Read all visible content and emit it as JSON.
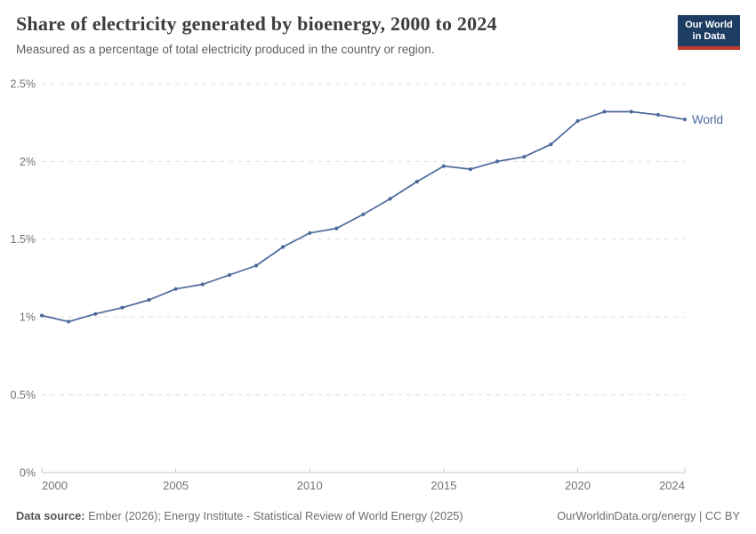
{
  "header": {
    "title": "Share of electricity generated by bioenergy, 2000 to 2024",
    "subtitle": "Measured as a percentage of total electricity produced in the country or region."
  },
  "logo": {
    "line1": "Our World",
    "line2": "in Data"
  },
  "colors": {
    "line": "#4C6A9C",
    "logo_bg": "#1d3d63",
    "logo_bar": "#c0392b",
    "grid": "#e0e0e0",
    "axis": "#c8c8c8",
    "tick_label": "#737373"
  },
  "chart_data": {
    "type": "line",
    "title": "Share of electricity generated by bioenergy, 2000 to 2024",
    "x": [
      2000,
      2001,
      2002,
      2003,
      2004,
      2005,
      2006,
      2007,
      2008,
      2009,
      2010,
      2011,
      2012,
      2013,
      2014,
      2015,
      2016,
      2017,
      2018,
      2019,
      2020,
      2021,
      2022,
      2023,
      2024
    ],
    "series": [
      {
        "name": "World",
        "values": [
          1.01,
          0.97,
          1.02,
          1.06,
          1.11,
          1.18,
          1.21,
          1.27,
          1.33,
          1.45,
          1.54,
          1.57,
          1.66,
          1.76,
          1.87,
          1.97,
          1.95,
          2.0,
          2.03,
          2.11,
          2.26,
          2.32,
          2.32,
          2.3,
          2.27
        ]
      }
    ],
    "y_unit": "%",
    "ylim": [
      0,
      2.5
    ],
    "yticks": [
      0,
      0.5,
      1,
      1.5,
      2,
      2.5
    ],
    "ytick_labels": [
      "0%",
      "0.5%",
      "1%",
      "1.5%",
      "2%",
      "2.5%"
    ],
    "xticks": [
      2000,
      2005,
      2010,
      2015,
      2020,
      2024
    ],
    "grid": "horizontal-dashed",
    "legend": "end-of-line-label"
  },
  "footer": {
    "source_label": "Data source:",
    "source_text": " Ember (2026); Energy Institute - Statistical Review of World Energy (2025)",
    "right_text": "OurWorldinData.org/energy | CC BY"
  }
}
